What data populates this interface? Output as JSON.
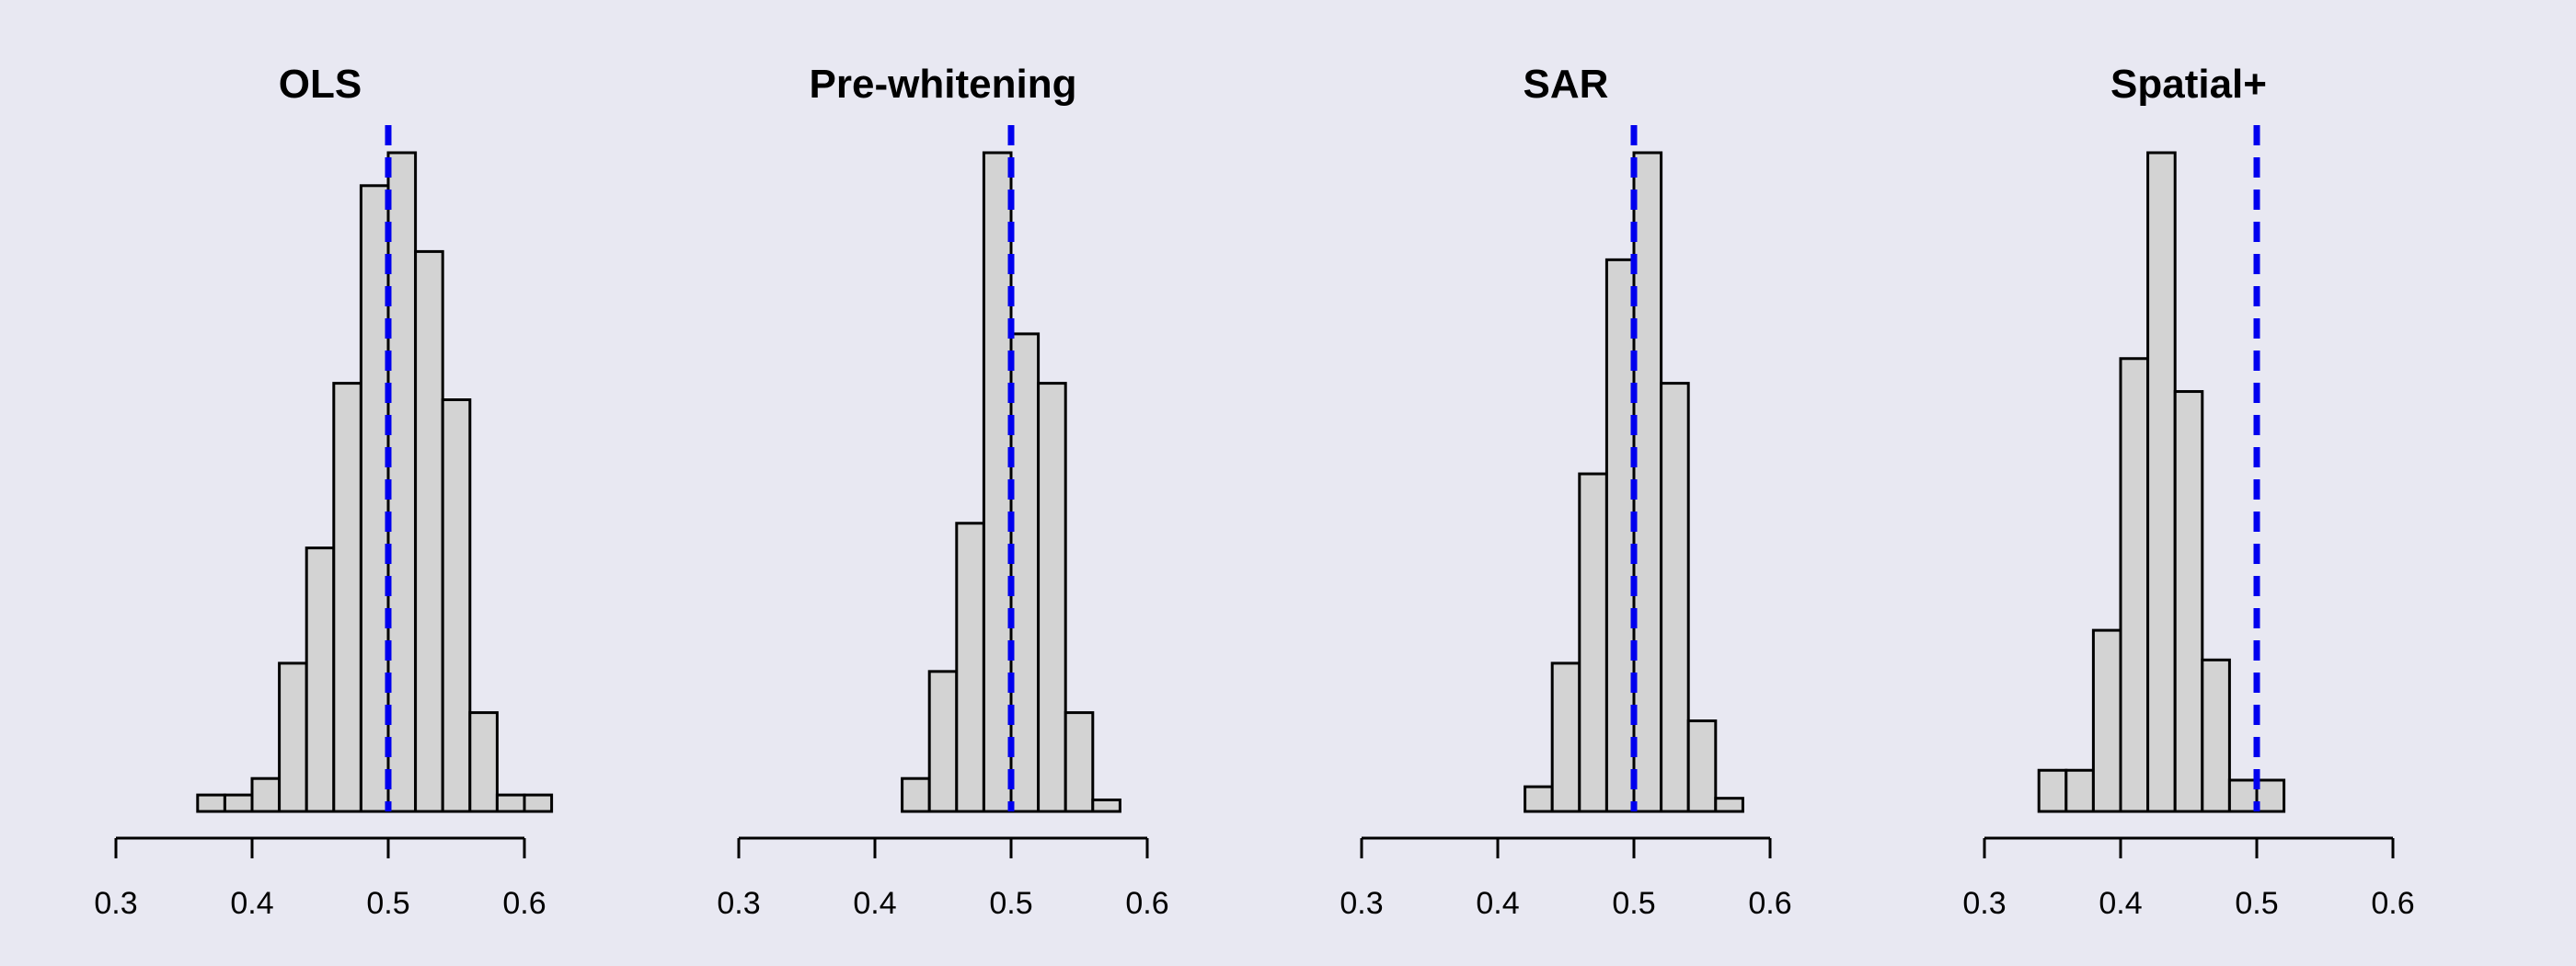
{
  "colors": {
    "background": "#e8e8f2",
    "bar_fill": "#d3d3d3",
    "bar_stroke": "#000000",
    "reference_line": "#0000ee"
  },
  "chart_data": [
    {
      "type": "bar",
      "subtype": "histogram",
      "title": "OLS",
      "xlim": [
        0.3,
        0.6
      ],
      "xticks": [
        0.3,
        0.4,
        0.5,
        0.6
      ],
      "xtick_labels": [
        "0.3",
        "0.4",
        "0.5",
        "0.6"
      ],
      "y_axis_shown": false,
      "bin_width": 0.02,
      "bin_starts": [
        0.36,
        0.38,
        0.4,
        0.42,
        0.44,
        0.46,
        0.48,
        0.5,
        0.52,
        0.54,
        0.56,
        0.58,
        0.6
      ],
      "counts": [
        1,
        1,
        2,
        9,
        16,
        26,
        38,
        40,
        34,
        25,
        6,
        1,
        1
      ],
      "reference_line": 0.5
    },
    {
      "type": "bar",
      "subtype": "histogram",
      "title": "Pre-whitening",
      "xlim": [
        0.3,
        0.6
      ],
      "xticks": [
        0.3,
        0.4,
        0.5,
        0.6
      ],
      "xtick_labels": [
        "0.3",
        "0.4",
        "0.5",
        "0.6"
      ],
      "y_axis_shown": false,
      "bin_width": 0.02,
      "bin_starts": [
        0.42,
        0.44,
        0.46,
        0.48,
        0.5,
        0.52,
        0.54,
        0.56
      ],
      "counts": [
        2,
        8.5,
        17.5,
        40,
        29,
        26,
        6,
        0.7
      ],
      "reference_line": 0.5
    },
    {
      "type": "bar",
      "subtype": "histogram",
      "title": "SAR",
      "xlim": [
        0.3,
        0.6
      ],
      "xticks": [
        0.3,
        0.4,
        0.5,
        0.6
      ],
      "xtick_labels": [
        "0.3",
        "0.4",
        "0.5",
        "0.6"
      ],
      "y_axis_shown": false,
      "bin_width": 0.02,
      "bin_starts": [
        0.42,
        0.44,
        0.46,
        0.48,
        0.5,
        0.52,
        0.54,
        0.56
      ],
      "counts": [
        1.5,
        9,
        20.5,
        33.5,
        40,
        26,
        5.5,
        0.8
      ],
      "reference_line": 0.5
    },
    {
      "type": "bar",
      "subtype": "histogram",
      "title": "Spatial+",
      "xlim": [
        0.3,
        0.6
      ],
      "xticks": [
        0.3,
        0.4,
        0.5,
        0.6
      ],
      "xtick_labels": [
        "0.3",
        "0.4",
        "0.5",
        "0.6"
      ],
      "y_axis_shown": false,
      "bin_width": 0.02,
      "bin_starts": [
        0.34,
        0.36,
        0.38,
        0.4,
        0.42,
        0.44,
        0.46,
        0.48,
        0.5
      ],
      "counts": [
        2.5,
        2.5,
        11,
        27.5,
        40,
        25.5,
        9.2,
        1.9,
        1.9
      ],
      "reference_line": 0.5
    }
  ]
}
